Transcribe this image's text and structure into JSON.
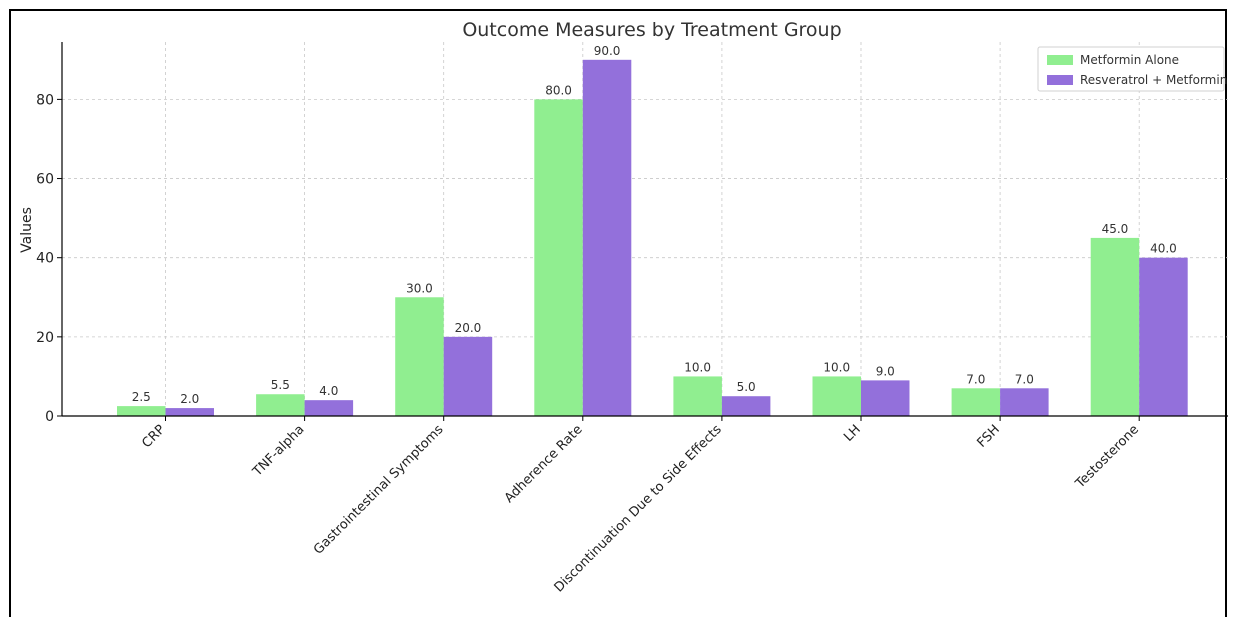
{
  "chart_data": {
    "type": "bar",
    "title": "Outcome Measures by Treatment Group",
    "xlabel": "",
    "ylabel": "Values",
    "ylim": [
      0,
      94.5
    ],
    "yticks": [
      0,
      20,
      40,
      60,
      80
    ],
    "grid": true,
    "legend_position": "top-right",
    "categories": [
      "CRP",
      "TNF-alpha",
      "Gastrointestinal Symptoms",
      "Adherence Rate",
      "Discontinuation Due to Side Effects",
      "LH",
      "FSH",
      "Testosterone"
    ],
    "series": [
      {
        "name": "Metformin Alone",
        "color": "#90ee90",
        "values": [
          2.5,
          5.5,
          30.0,
          80.0,
          10.0,
          10.0,
          7.0,
          45.0
        ]
      },
      {
        "name": "Resveratrol + Metformin",
        "color": "#9370db",
        "values": [
          2.0,
          4.0,
          20.0,
          90.0,
          5.0,
          9.0,
          7.0,
          40.0
        ]
      }
    ]
  }
}
